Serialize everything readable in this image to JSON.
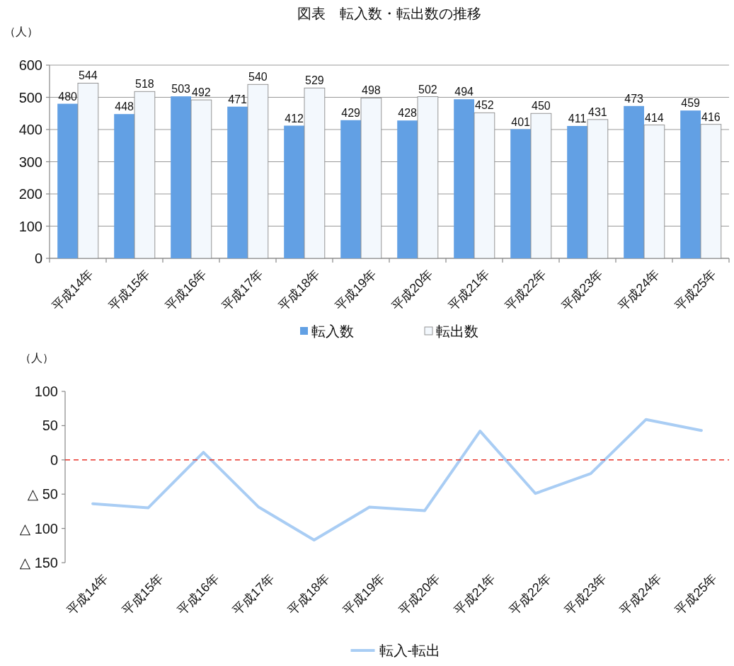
{
  "chart_data": [
    {
      "type": "bar",
      "title": "図表　転入数・転出数の推移",
      "ylabel": "（人）",
      "categories": [
        "平成14年",
        "平成15年",
        "平成16年",
        "平成17年",
        "平成18年",
        "平成19年",
        "平成20年",
        "平成21年",
        "平成22年",
        "平成23年",
        "平成24年",
        "平成25年"
      ],
      "series": [
        {
          "name": "転入数",
          "color": "#62a0e4",
          "values": [
            480,
            448,
            503,
            471,
            412,
            429,
            428,
            494,
            401,
            411,
            473,
            459
          ]
        },
        {
          "name": "転出数",
          "color": "#f3f8fd",
          "values": [
            544,
            518,
            492,
            540,
            529,
            498,
            502,
            452,
            450,
            431,
            414,
            416
          ]
        }
      ],
      "ylim": [
        0,
        600
      ],
      "yticks": [
        0,
        100,
        200,
        300,
        400,
        500,
        600
      ],
      "grid": "y",
      "legend": "bottom",
      "data_labels": true
    },
    {
      "type": "line",
      "ylabel": "（人）",
      "categories": [
        "平成14年",
        "平成15年",
        "平成16年",
        "平成17年",
        "平成18年",
        "平成19年",
        "平成20年",
        "平成21年",
        "平成22年",
        "平成23年",
        "平成24年",
        "平成25年"
      ],
      "series": [
        {
          "name": "転入-転出",
          "color": "#a9cdf4",
          "values": [
            -64,
            -70,
            11,
            -69,
            -117,
            -69,
            -74,
            42,
            -49,
            -20,
            59,
            43
          ]
        }
      ],
      "ylim": [
        -150,
        100
      ],
      "yticks": [
        {
          "value": -150,
          "label": "△ 150"
        },
        {
          "value": -100,
          "label": "△ 100"
        },
        {
          "value": -50,
          "label": "△ 50"
        },
        0,
        50,
        100
      ],
      "ref_lines": [
        {
          "axis": "y",
          "value": 0,
          "color": "#e8332a",
          "line_style": "dashed"
        }
      ],
      "legend": "bottom"
    }
  ]
}
